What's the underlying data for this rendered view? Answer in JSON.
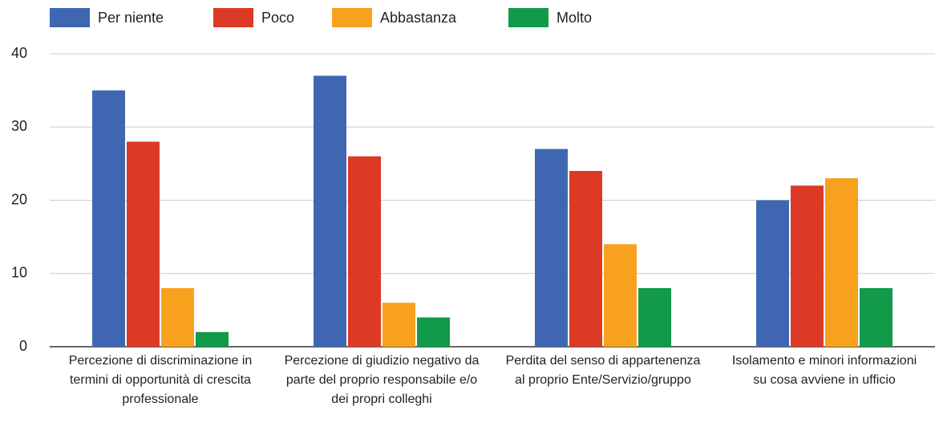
{
  "chart_data": {
    "type": "bar",
    "categories": [
      "Percezione di discriminazione in termini di opportunità di crescita professionale",
      "Percezione di giudizio negativo da parte del proprio responsabile e/o dei propri colleghi",
      "Perdita del senso di appartenenza al proprio Ente/Servizio/gruppo",
      "Isolamento e minori informazioni su cosa avviene in ufficio"
    ],
    "series": [
      {
        "name": "Per niente",
        "color": "#3f67b1",
        "values": [
          35,
          37,
          27,
          20
        ]
      },
      {
        "name": "Poco",
        "color": "#dc3a26",
        "values": [
          28,
          26,
          24,
          22
        ]
      },
      {
        "name": "Abbastanza",
        "color": "#f7a11f",
        "values": [
          8,
          6,
          14,
          23
        ]
      },
      {
        "name": "Molto",
        "color": "#109a4a",
        "values": [
          2,
          4,
          8,
          8
        ]
      }
    ],
    "ylim": [
      0,
      40
    ],
    "yticks": [
      0,
      10,
      20,
      30,
      40
    ],
    "grid": true,
    "legend": "top"
  }
}
